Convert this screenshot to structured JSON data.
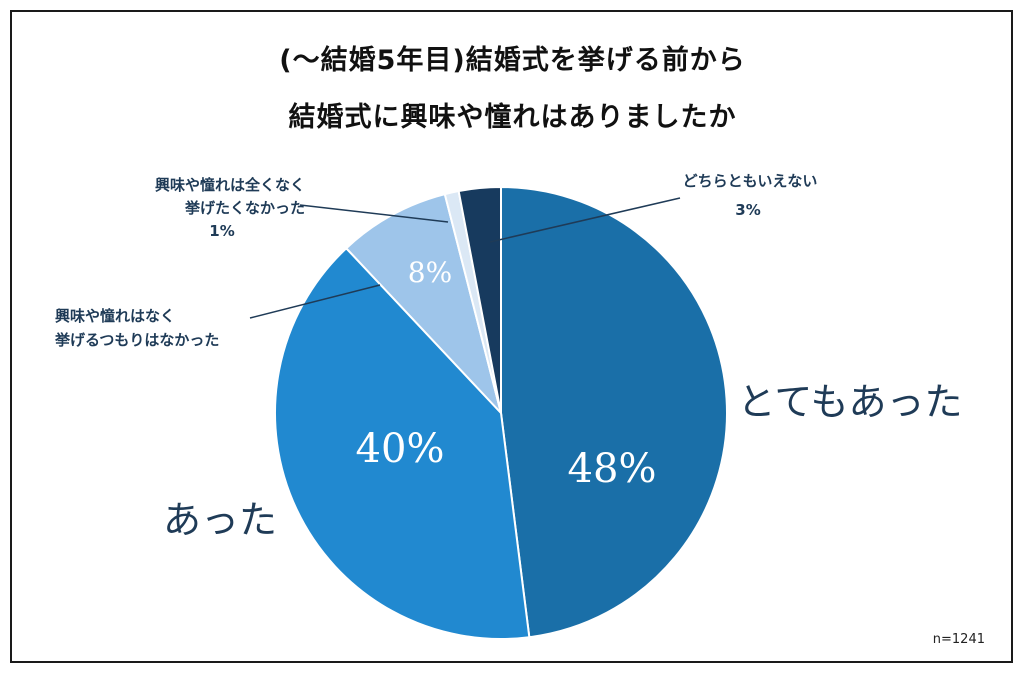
{
  "title": {
    "line1": "(〜結婚5年目)結婚式を挙げる前から",
    "line2": "結婚式に興味や憧れはありましたか"
  },
  "note": "n=1241",
  "chart_data": {
    "type": "pie",
    "title": "(〜結婚5年目)結婚式を挙げる前から 結婚式に興味や憧れはありましたか",
    "slices": [
      {
        "label": "とてもあった",
        "value": 48,
        "pct_label": "48%",
        "color": "#1a6fa8"
      },
      {
        "label": "あった",
        "value": 40,
        "pct_label": "40%",
        "color": "#2189d0"
      },
      {
        "label": "興味や憧れはなく 挙げるつもりはなかった",
        "value": 8,
        "pct_label": "8%",
        "color": "#9ec5ea"
      },
      {
        "label": "興味や憧れは全くなく 挙げたくなかった",
        "value": 1,
        "pct_label": "1%",
        "color": "#dbe8f5"
      },
      {
        "label": "どちらともいえない",
        "value": 3,
        "pct_label": "3%",
        "color": "#173a5e"
      }
    ]
  }
}
